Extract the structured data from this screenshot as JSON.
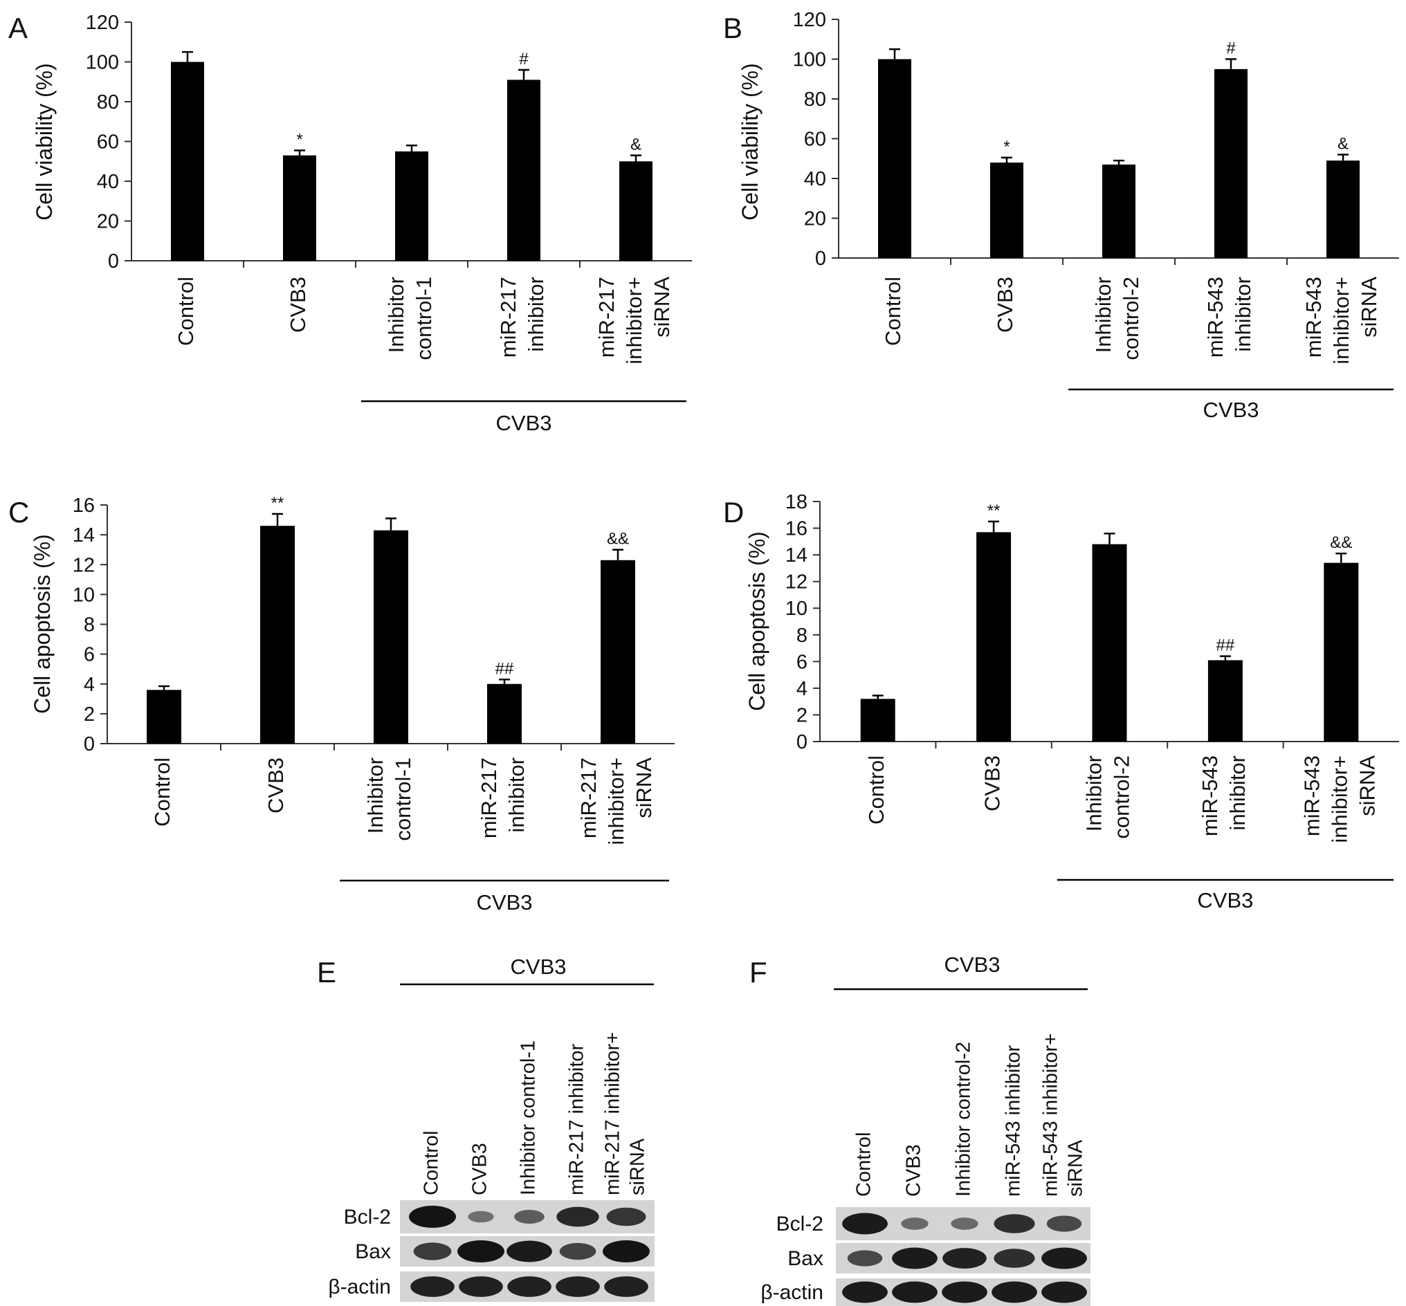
{
  "chart_data": [
    {
      "panel": "A",
      "type": "bar",
      "ylabel": "Cell viability (%)",
      "ylim": [
        0,
        120
      ],
      "ystep": 20,
      "categories": [
        [
          "Control"
        ],
        [
          "CVB3"
        ],
        [
          "Inhibitor",
          "control-1"
        ],
        [
          "miR-217",
          "inhibitor"
        ],
        [
          "miR-217",
          "inhibitor+",
          "siRNA"
        ]
      ],
      "values": [
        100,
        53,
        55,
        91,
        50
      ],
      "errors": [
        5,
        2.5,
        3,
        5,
        3
      ],
      "annotations": [
        "",
        "*",
        "",
        "#",
        "&"
      ],
      "group_label": "CVB3"
    },
    {
      "panel": "B",
      "type": "bar",
      "ylabel": "Cell viability (%)",
      "ylim": [
        0,
        120
      ],
      "ystep": 20,
      "categories": [
        [
          "Control"
        ],
        [
          "CVB3"
        ],
        [
          "Inhibitor",
          "control-2"
        ],
        [
          "miR-543",
          "inhibitor"
        ],
        [
          "miR-543",
          "inhibitor+",
          "siRNA"
        ]
      ],
      "values": [
        100,
        48,
        47,
        95,
        49
      ],
      "errors": [
        5,
        2.5,
        2,
        5,
        3
      ],
      "annotations": [
        "",
        "*",
        "",
        "#",
        "&"
      ],
      "group_label": "CVB3"
    },
    {
      "panel": "C",
      "type": "bar",
      "ylabel": "Cell apoptosis (%)",
      "ylim": [
        0,
        16
      ],
      "ystep": 2,
      "categories": [
        [
          "Control"
        ],
        [
          "CVB3"
        ],
        [
          "Inhibitor",
          "control-1"
        ],
        [
          "miR-217",
          "inhibitor"
        ],
        [
          "miR-217",
          "inhibitor+",
          "siRNA"
        ]
      ],
      "values": [
        3.6,
        14.6,
        14.3,
        4.0,
        12.3
      ],
      "errors": [
        0.25,
        0.8,
        0.8,
        0.3,
        0.7
      ],
      "annotations": [
        "",
        "**",
        "",
        "##",
        "&&"
      ],
      "group_label": "CVB3"
    },
    {
      "panel": "D",
      "type": "bar",
      "ylabel": "Cell apoptosis (%)",
      "ylim": [
        0,
        18
      ],
      "ystep": 2,
      "categories": [
        [
          "Control"
        ],
        [
          "CVB3"
        ],
        [
          "Inhibitor",
          "control-2"
        ],
        [
          "miR-543",
          "inhibitor"
        ],
        [
          "miR-543",
          "inhibitor+",
          "siRNA"
        ]
      ],
      "values": [
        3.2,
        15.7,
        14.8,
        6.1,
        13.4
      ],
      "errors": [
        0.25,
        0.8,
        0.8,
        0.3,
        0.7
      ],
      "annotations": [
        "",
        "**",
        "",
        "##",
        "&&"
      ],
      "group_label": "CVB3"
    }
  ],
  "blots": [
    {
      "panel": "E",
      "group_label": "CVB3",
      "lanes": [
        [
          "Control"
        ],
        [
          "CVB3"
        ],
        [
          "Inhibitor control-1"
        ],
        [
          "miR-217 inhibitor"
        ],
        [
          "miR-217 inhibitor+",
          "siRNA"
        ]
      ],
      "rows": [
        {
          "label": "Bcl-2",
          "intensity": [
            1.0,
            0.3,
            0.45,
            0.85,
            0.75
          ]
        },
        {
          "label": "Bax",
          "intensity": [
            0.7,
            1.0,
            0.95,
            0.65,
            1.0
          ]
        },
        {
          "label": "β-actin",
          "intensity": [
            0.9,
            0.9,
            0.9,
            0.9,
            0.9
          ]
        }
      ]
    },
    {
      "panel": "F",
      "group_label": "CVB3",
      "lanes": [
        [
          "Control"
        ],
        [
          "CVB3"
        ],
        [
          "Inhibitor control-2"
        ],
        [
          "miR-543 inhibitor"
        ],
        [
          "miR-543 inhibitor+",
          "siRNA"
        ]
      ],
      "rows": [
        {
          "label": "Bcl-2",
          "intensity": [
            0.95,
            0.35,
            0.35,
            0.8,
            0.6
          ]
        },
        {
          "label": "Bax",
          "intensity": [
            0.6,
            0.95,
            0.9,
            0.8,
            0.95
          ]
        },
        {
          "label": "β-actin",
          "intensity": [
            0.95,
            0.95,
            0.95,
            0.95,
            0.95
          ]
        }
      ]
    }
  ],
  "colors": {
    "bar": "#000000",
    "axis": "#333333",
    "text": "#111111"
  }
}
